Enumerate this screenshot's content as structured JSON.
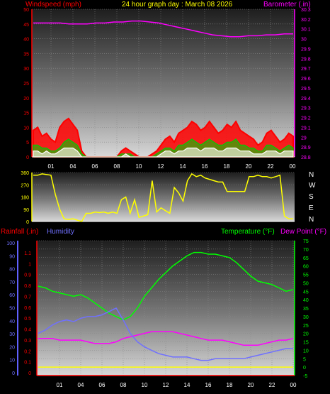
{
  "header": {
    "title": "24 hour graph day : March 08 2026",
    "left_label": "Windspeed (mph)",
    "right_label": "Barometer (.in)"
  },
  "bottom_header": {
    "rainfall": "Rainfall (.in)",
    "humidity": "Humidity",
    "temperature": "Temperature (°F)",
    "dewpoint": "Dew Point (°F)"
  },
  "compass": [
    "N",
    "W",
    "S",
    "E",
    "N"
  ],
  "colors": {
    "wind_max": "#ff0000",
    "wind_avg": "#ffffff",
    "wind_mid": "#00cc00",
    "barometer": "#ff00ff",
    "direction": "#ffff00",
    "temperature": "#00ff00",
    "dewpoint": "#ff00ff",
    "humidity": "#7070ff",
    "rainfall": "#ffff00"
  },
  "chart_data": [
    {
      "type": "line",
      "name": "wind-barometer",
      "title": "24 hour graph day : March 08 2026",
      "ylabel": "Windspeed (mph)",
      "y2label": "Barometer (.in)",
      "x_ticks": [
        "01",
        "04",
        "06",
        "08",
        "10",
        "12",
        "14",
        "16",
        "18",
        "20",
        "22",
        "00"
      ],
      "ylim": [
        0,
        50
      ],
      "y_ticks": [
        0,
        5,
        10,
        15,
        20,
        25,
        30,
        35,
        40,
        45,
        50
      ],
      "y2lim": [
        28.8,
        30.3
      ],
      "y2_ticks": [
        "28.8",
        "28.9",
        "29",
        "29.1",
        "29.2",
        "29.3",
        "29.4",
        "29.5",
        "29.6",
        "29.7",
        "29.8",
        "29.9",
        "30",
        "30.1",
        "30.2",
        "30.3"
      ],
      "series": [
        {
          "name": "Barometer",
          "axis": "right",
          "values": [
            30.16,
            30.16,
            30.16,
            30.16,
            30.15,
            30.15,
            30.15,
            30.16,
            30.16,
            30.17,
            30.17,
            30.18,
            30.18,
            30.17,
            30.16,
            30.14,
            30.12,
            30.1,
            30.08,
            30.06,
            30.04,
            30.03,
            30.02,
            30.02,
            30.03,
            30.03,
            30.04,
            30.04,
            30.05,
            30.05
          ]
        },
        {
          "name": "Wind gust",
          "axis": "left",
          "values": [
            9,
            10,
            7,
            8,
            6,
            5,
            10,
            12,
            13,
            11,
            9,
            2,
            0,
            0,
            0,
            0,
            0,
            0,
            0,
            0,
            2,
            3,
            2,
            1,
            0,
            0,
            0,
            1,
            2,
            4,
            6,
            7,
            5,
            8,
            9,
            10,
            12,
            11,
            9,
            10,
            12,
            10,
            8,
            9,
            11,
            10,
            12,
            9,
            8,
            7,
            6,
            4,
            5,
            8,
            9,
            7,
            5,
            6,
            8,
            7
          ]
        },
        {
          "name": "Wind average",
          "axis": "left",
          "values": [
            4,
            4,
            3,
            3,
            2,
            2,
            3,
            5,
            6,
            5,
            4,
            1,
            0,
            0,
            0,
            0,
            0,
            0,
            0,
            0,
            1,
            1,
            1,
            0,
            0,
            0,
            0,
            0,
            1,
            2,
            3,
            3,
            2,
            4,
            4,
            5,
            6,
            5,
            4,
            5,
            6,
            5,
            4,
            4,
            5,
            5,
            6,
            4,
            4,
            3,
            3,
            2,
            2,
            4,
            4,
            3,
            2,
            3,
            4,
            3
          ]
        },
        {
          "name": "Wind speed",
          "axis": "left",
          "values": [
            2,
            2,
            1,
            2,
            1,
            1,
            2,
            3,
            3,
            3,
            2,
            0,
            0,
            0,
            0,
            0,
            0,
            0,
            0,
            0,
            0,
            1,
            0,
            0,
            0,
            0,
            0,
            0,
            0,
            1,
            2,
            2,
            1,
            2,
            2,
            3,
            3,
            3,
            2,
            3,
            3,
            3,
            2,
            2,
            3,
            3,
            3,
            2,
            2,
            2,
            1,
            1,
            1,
            2,
            2,
            2,
            1,
            2,
            2,
            2
          ]
        }
      ]
    },
    {
      "type": "line",
      "name": "wind-direction",
      "ylim": [
        0,
        360
      ],
      "y_ticks": [
        0,
        90,
        180,
        270,
        360
      ],
      "series": [
        {
          "name": "Wind direction",
          "values": [
            340,
            340,
            350,
            345,
            340,
            200,
            90,
            20,
            15,
            20,
            10,
            0,
            60,
            60,
            70,
            65,
            70,
            60,
            70,
            60,
            160,
            180,
            60,
            160,
            30,
            40,
            50,
            300,
            70,
            100,
            80,
            60,
            250,
            210,
            150,
            300,
            350,
            330,
            340,
            320,
            310,
            300,
            290,
            290,
            220,
            220,
            220,
            220,
            220,
            330,
            330,
            340,
            330,
            330,
            320,
            330,
            340,
            40,
            20,
            20
          ]
        }
      ]
    },
    {
      "type": "line",
      "name": "temp-humidity-rain",
      "ylim": [
        -5,
        75
      ],
      "y_ticks": [
        -5,
        0,
        5,
        10,
        15,
        20,
        25,
        30,
        35,
        40,
        45,
        50,
        55,
        60,
        65,
        70,
        75
      ],
      "left_ticks_rain": [
        "0",
        "0.1",
        "0.2",
        "0.3",
        "0.4",
        "0.5",
        "0.6",
        "0.7",
        "0.8",
        "0.9",
        "1",
        "1.1"
      ],
      "left_ticks_humidity": [
        "0",
        "10",
        "20",
        "30",
        "40",
        "50",
        "60",
        "70",
        "80",
        "90",
        "100"
      ],
      "x_ticks": [
        "01",
        "04",
        "06",
        "08",
        "10",
        "12",
        "14",
        "16",
        "18",
        "20",
        "22",
        "00"
      ],
      "series": [
        {
          "name": "Temperature",
          "values": [
            48,
            47,
            45,
            44,
            43,
            42,
            43,
            41,
            38,
            35,
            32,
            30,
            28,
            30,
            35,
            42,
            47,
            52,
            56,
            60,
            63,
            66,
            68,
            68,
            67,
            67,
            66,
            65,
            62,
            58,
            54,
            51,
            50,
            49,
            47,
            45,
            46
          ]
        },
        {
          "name": "Dew Point",
          "values": [
            17,
            17,
            17,
            16,
            16,
            16,
            16,
            15,
            14,
            14,
            14,
            15,
            17,
            18,
            19,
            20,
            21,
            21,
            21,
            21,
            20,
            19,
            18,
            17,
            16,
            16,
            16,
            15,
            14,
            13,
            13,
            13,
            14,
            15,
            16,
            16,
            17
          ]
        },
        {
          "name": "Humidity",
          "values": [
            20,
            22,
            25,
            27,
            28,
            27,
            29,
            30,
            30,
            31,
            33,
            35,
            28,
            20,
            15,
            12,
            10,
            8,
            7,
            6,
            6,
            6,
            5,
            4,
            4,
            5,
            5,
            5,
            5,
            5,
            6,
            7,
            8,
            9,
            10,
            11,
            11
          ]
        },
        {
          "name": "Rainfall",
          "values": [
            0,
            0,
            0,
            0,
            0,
            0,
            0,
            0,
            0,
            0,
            0,
            0,
            0,
            0,
            0,
            0,
            0,
            0,
            0,
            0,
            0,
            0,
            0,
            0,
            0,
            0,
            0,
            0,
            0,
            0,
            0,
            0,
            0,
            0,
            0,
            0,
            0
          ]
        }
      ]
    }
  ]
}
